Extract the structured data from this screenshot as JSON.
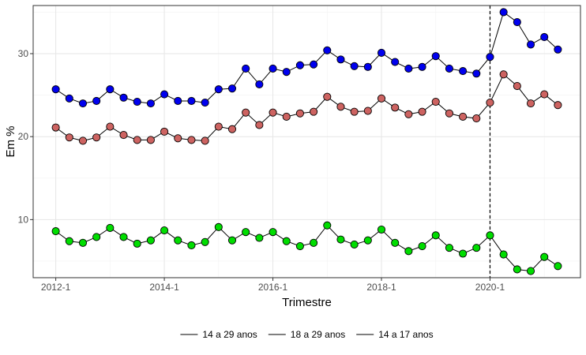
{
  "chart_data": {
    "type": "line",
    "title": "",
    "xlabel": "Trimestre",
    "ylabel": "Em %",
    "x": [
      "2012-1",
      "2012-2",
      "2012-3",
      "2012-4",
      "2013-1",
      "2013-2",
      "2013-3",
      "2013-4",
      "2014-1",
      "2014-2",
      "2014-3",
      "2014-4",
      "2015-1",
      "2015-2",
      "2015-3",
      "2015-4",
      "2016-1",
      "2016-2",
      "2016-3",
      "2016-4",
      "2017-1",
      "2017-2",
      "2017-3",
      "2017-4",
      "2018-1",
      "2018-2",
      "2018-3",
      "2018-4",
      "2019-1",
      "2019-2",
      "2019-3",
      "2019-4",
      "2020-1",
      "2020-2",
      "2020-3",
      "2020-4",
      "2021-1",
      "2021-2"
    ],
    "x_ticks": [
      "2012-1",
      "2014-1",
      "2016-1",
      "2018-1",
      "2020-1"
    ],
    "y_ticks": [
      10,
      20,
      30
    ],
    "ylim": [
      3.0,
      35.8
    ],
    "vline_at": "2020-1",
    "legend_position": "bottom",
    "grid": true,
    "series": [
      {
        "name": "14 a 29 anos",
        "color": "#0000ee",
        "values": [
          25.7,
          24.6,
          24.0,
          24.3,
          25.7,
          24.7,
          24.2,
          24.0,
          25.1,
          24.3,
          24.3,
          24.1,
          25.7,
          25.8,
          28.2,
          26.3,
          28.2,
          27.8,
          28.6,
          28.7,
          30.4,
          29.3,
          28.5,
          28.4,
          30.1,
          29.0,
          28.2,
          28.4,
          29.7,
          28.2,
          27.9,
          27.6,
          29.6,
          35.0,
          33.8,
          31.1,
          32.0,
          30.5
        ]
      },
      {
        "name": "18 a 29 anos",
        "color": "#cd6361",
        "values": [
          21.1,
          19.9,
          19.5,
          19.9,
          21.2,
          20.2,
          19.6,
          19.6,
          20.6,
          19.8,
          19.6,
          19.5,
          21.2,
          20.9,
          22.9,
          21.4,
          22.9,
          22.4,
          22.8,
          23.0,
          24.8,
          23.6,
          23.0,
          23.1,
          24.6,
          23.5,
          22.7,
          23.0,
          24.2,
          22.8,
          22.4,
          22.2,
          24.1,
          27.5,
          26.1,
          24.0,
          25.1,
          23.8
        ]
      },
      {
        "name": "14 a 17 anos",
        "color": "#00dd00",
        "values": [
          8.6,
          7.4,
          7.2,
          7.9,
          9.0,
          7.9,
          7.1,
          7.5,
          8.7,
          7.5,
          6.9,
          7.3,
          9.1,
          7.5,
          8.5,
          7.8,
          8.5,
          7.4,
          6.8,
          7.2,
          9.3,
          7.6,
          7.0,
          7.5,
          8.8,
          7.2,
          6.2,
          6.8,
          8.1,
          6.6,
          5.9,
          6.6,
          8.1,
          5.8,
          4.0,
          3.8,
          5.5,
          4.4
        ]
      }
    ]
  }
}
